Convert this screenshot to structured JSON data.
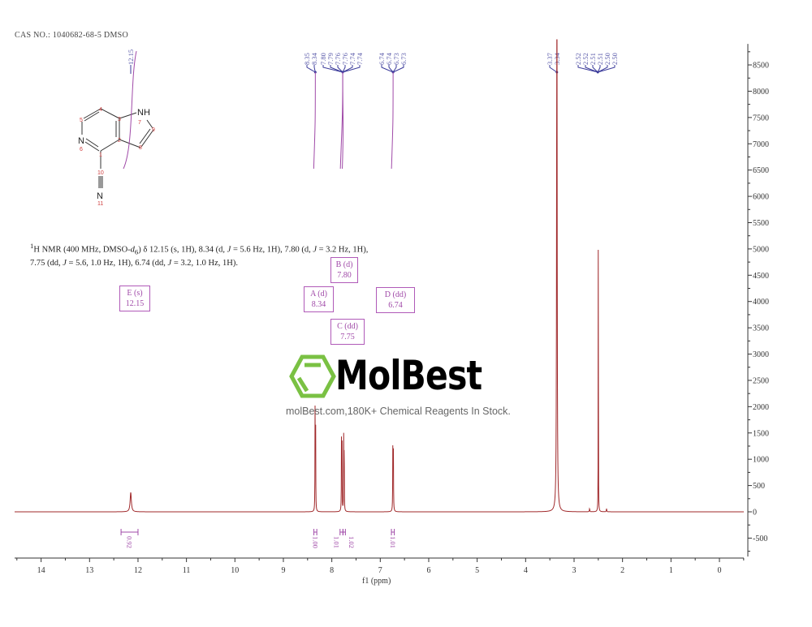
{
  "header": {
    "cas_label": "CAS NO.: 1040682-68-5 DMSO"
  },
  "description": {
    "text_html": "<sup>1</sup>H NMR (400 MHz, DMSO-<i>d</i><sub>6</sub>) δ 12.15 (s, 1H), 8.34 (d, <i>J</i> = 5.6 Hz, 1H), 7.80 (d, <i>J</i> = 3.2 Hz, 1H), 7.75 (dd, <i>J</i> = 5.6, 1.0 Hz, 1H), 6.74 (dd, <i>J</i> = 3.2, 1.0 Hz, 1H)."
  },
  "structure": {
    "atoms": [
      "NH",
      "N",
      "N"
    ],
    "atom_numbers": [
      "1",
      "2",
      "3",
      "4",
      "5",
      "6",
      "7",
      "8",
      "9",
      "10",
      "11"
    ]
  },
  "multiplets": [
    {
      "name": "E (s)",
      "shift": "12.15"
    },
    {
      "name": "A (d)",
      "shift": "8.34"
    },
    {
      "name": "B (d)",
      "shift": "7.80"
    },
    {
      "name": "C (dd)",
      "shift": "7.75"
    },
    {
      "name": "D (dd)",
      "shift": "6.74"
    }
  ],
  "watermark": {
    "brand": "MolBest",
    "tagline": "molBest.com,180K+ Chemical Reagents In Stock.",
    "logo_color": "#7ac143"
  },
  "chart_data": {
    "type": "line",
    "xlabel": "f1 (ppm)",
    "ylabel": "",
    "xlim": [
      14.55,
      -0.5
    ],
    "x_reversed": true,
    "ylim": [
      -850,
      8900
    ],
    "x_ticks": [
      "14",
      "13",
      "12",
      "11",
      "10",
      "9",
      "8",
      "7",
      "6",
      "5",
      "4",
      "3",
      "2",
      "1",
      "0"
    ],
    "y_ticks": [
      "-500",
      "0",
      "500",
      "1000",
      "1500",
      "2000",
      "2500",
      "3000",
      "3500",
      "4000",
      "4500",
      "5000",
      "5500",
      "6000",
      "6500",
      "7000",
      "7500",
      "8000",
      "8500"
    ],
    "line_color": "#a0282a",
    "peak_label_color": "#3a3a9a",
    "integral_color": "#a04aa8",
    "peaks": [
      {
        "ppm": 12.15,
        "height": 370,
        "width": 0.03
      },
      {
        "ppm": 8.345,
        "height": 2050,
        "width": 0.006
      },
      {
        "ppm": 8.335,
        "height": 2000,
        "width": 0.006
      },
      {
        "ppm": 7.8,
        "height": 1550,
        "width": 0.006
      },
      {
        "ppm": 7.79,
        "height": 1480,
        "width": 0.006
      },
      {
        "ppm": 7.755,
        "height": 1380,
        "width": 0.006
      },
      {
        "ppm": 7.745,
        "height": 1350,
        "width": 0.006
      },
      {
        "ppm": 6.74,
        "height": 1300,
        "width": 0.007
      },
      {
        "ppm": 6.73,
        "height": 1250,
        "width": 0.007
      },
      {
        "ppm": 3.355,
        "height": 12000,
        "width": 0.012
      },
      {
        "ppm": 2.5,
        "height": 6950,
        "width": 0.004
      },
      {
        "ppm": 2.68,
        "height": 60,
        "width": 0.01
      },
      {
        "ppm": 2.33,
        "height": 60,
        "width": 0.01
      }
    ],
    "peak_label_groups": [
      {
        "labels": [
          "8.35",
          "8.34"
        ]
      },
      {
        "labels": [
          "7.80",
          "7.79",
          "7.76",
          "7.76",
          "7.74",
          "7.74"
        ]
      },
      {
        "labels": [
          "6.74",
          "6.74",
          "6.73",
          "6.73"
        ]
      },
      {
        "labels": [
          "3.37",
          "3.34"
        ]
      },
      {
        "labels": [
          "2.52",
          "2.52",
          "2.51",
          "2.51",
          "2.50",
          "2.50"
        ]
      }
    ],
    "single_peak_labels": [
      {
        "label": "12.15",
        "ppm": 12.15
      }
    ],
    "integrals": [
      {
        "value": "0.92",
        "from": 12.35,
        "to": 12.0
      },
      {
        "value": "1.00",
        "from": 8.37,
        "to": 8.31
      },
      {
        "value": "1.01",
        "from": 7.83,
        "to": 7.77
      },
      {
        "value": "1.02",
        "from": 7.77,
        "to": 7.72
      },
      {
        "value": "1.01",
        "from": 6.77,
        "to": 6.71
      }
    ]
  }
}
